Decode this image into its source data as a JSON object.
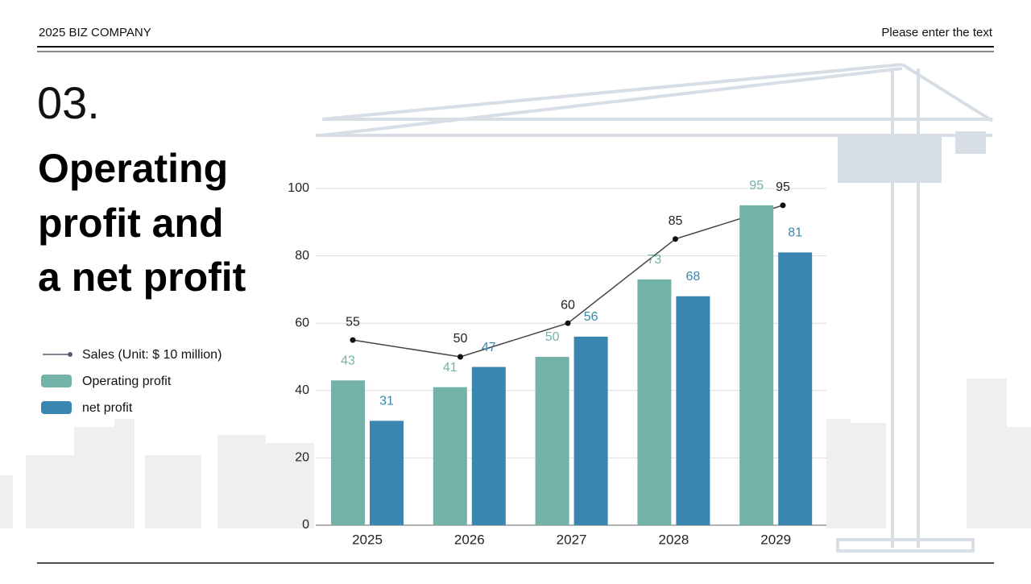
{
  "header": {
    "company": "2025 BIZ COMPANY",
    "note": "Please enter the text"
  },
  "section": {
    "number": "03.",
    "title": [
      "Operating",
      "profit and",
      "a net profit"
    ]
  },
  "chart_data": {
    "type": "bar",
    "categories": [
      "2025",
      "2026",
      "2027",
      "2028",
      "2029"
    ],
    "series": [
      {
        "name": "Sales (Unit: $ 10 million)",
        "type": "line",
        "color": "#444444",
        "values": [
          55,
          50,
          60,
          85,
          95
        ]
      },
      {
        "name": "Operating profit",
        "type": "bar",
        "color": "#72b2a9",
        "values": [
          43,
          41,
          50,
          73,
          95
        ]
      },
      {
        "name": "net profit",
        "type": "bar",
        "color": "#3a86b0",
        "values": [
          31,
          47,
          56,
          68,
          81
        ]
      }
    ],
    "ylim": [
      0,
      100
    ],
    "yticks": [
      0,
      20,
      40,
      60,
      80,
      100
    ],
    "grid": true
  }
}
